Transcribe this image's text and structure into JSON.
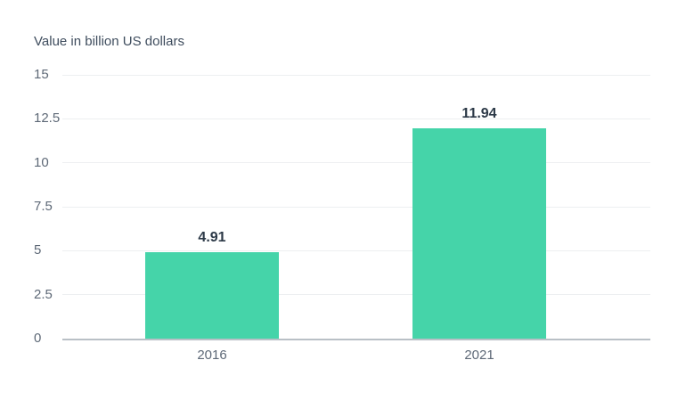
{
  "page": {
    "background": "#ffffff"
  },
  "chart_data": {
    "type": "bar",
    "title": "Value in billion US dollars",
    "categories": [
      "2016",
      "2021"
    ],
    "values": [
      4.91,
      11.94
    ],
    "value_labels": [
      "4.91",
      "11.94"
    ],
    "xlabel": "",
    "ylabel": "Value in billion US dollars",
    "ylim": [
      0,
      15
    ],
    "ytick_step": 2.5,
    "yticks": [
      "0",
      "2.5",
      "5",
      "7.5",
      "10",
      "12.5",
      "15"
    ],
    "grid": "horizontal",
    "legend_position": "none",
    "bar_color": "#45d4a9",
    "colors": {
      "title_text": "#3f4d5e",
      "tick_text": "#5e6977",
      "value_label_text": "#2c3947",
      "gridline": "#edeff1",
      "axis_line": "#b9c0c6",
      "background": "#ffffff"
    }
  }
}
